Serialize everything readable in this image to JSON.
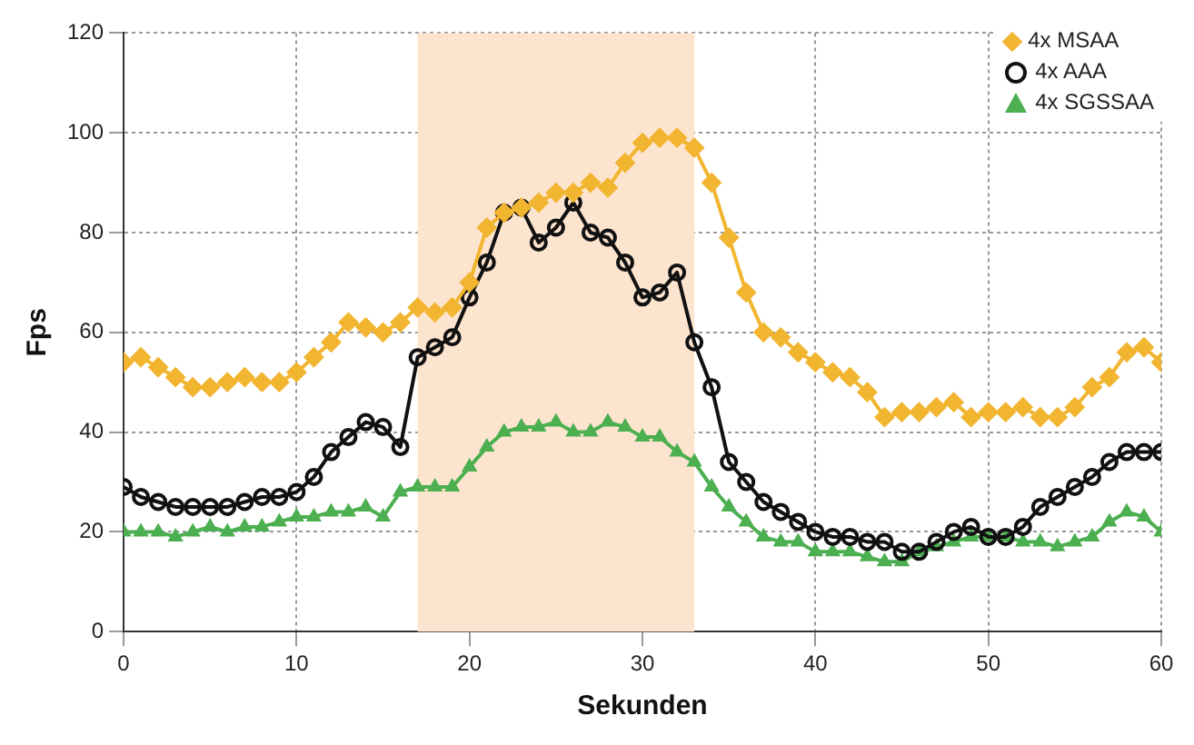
{
  "chart_data": {
    "type": "line",
    "xlabel": "Sekunden",
    "ylabel": "Fps",
    "x": [
      0,
      1,
      2,
      3,
      4,
      5,
      6,
      7,
      8,
      9,
      10,
      11,
      12,
      13,
      14,
      15,
      16,
      17,
      18,
      19,
      20,
      21,
      22,
      23,
      24,
      25,
      26,
      27,
      28,
      29,
      30,
      31,
      32,
      33,
      34,
      35,
      36,
      37,
      38,
      39,
      40,
      41,
      42,
      43,
      44,
      45,
      46,
      47,
      48,
      49,
      50,
      51,
      52,
      53,
      54,
      55,
      56,
      57,
      58,
      59,
      60
    ],
    "series": [
      {
        "name": "4x MSAA",
        "color": "#f2b530",
        "marker": "diamond",
        "values": [
          54,
          55,
          53,
          51,
          49,
          49,
          50,
          51,
          50,
          50,
          52,
          55,
          58,
          62,
          61,
          60,
          62,
          65,
          64,
          65,
          70,
          81,
          84,
          85,
          86,
          88,
          88,
          90,
          89,
          94,
          98,
          99,
          99,
          97,
          90,
          79,
          68,
          60,
          59,
          56,
          54,
          52,
          51,
          48,
          43,
          44,
          44,
          45,
          46,
          43,
          44,
          44,
          45,
          43,
          43,
          45,
          49,
          51,
          56,
          57,
          54
        ]
      },
      {
        "name": "4x AAA",
        "color": "#111111",
        "marker": "circle",
        "values": [
          29,
          27,
          26,
          25,
          25,
          25,
          25,
          26,
          27,
          27,
          28,
          31,
          36,
          39,
          42,
          41,
          37,
          55,
          57,
          59,
          67,
          74,
          84,
          85,
          78,
          81,
          86,
          80,
          79,
          74,
          67,
          68,
          72,
          58,
          49,
          34,
          30,
          26,
          24,
          22,
          20,
          19,
          19,
          18,
          18,
          16,
          16,
          18,
          20,
          21,
          19,
          19,
          21,
          25,
          27,
          29,
          31,
          34,
          36,
          36,
          36
        ]
      },
      {
        "name": "4x SGSSAA",
        "color": "#4caf50",
        "marker": "triangle",
        "values": [
          20,
          20,
          20,
          19,
          20,
          21,
          20,
          21,
          21,
          22,
          23,
          23,
          24,
          24,
          25,
          23,
          28,
          29,
          29,
          29,
          33,
          37,
          40,
          41,
          41,
          42,
          40,
          40,
          42,
          41,
          39,
          39,
          36,
          34,
          29,
          25,
          22,
          19,
          18,
          18,
          16,
          16,
          16,
          15,
          14,
          14,
          16,
          17,
          18,
          19,
          19,
          19,
          18,
          18,
          17,
          18,
          19,
          22,
          24,
          23,
          20
        ]
      }
    ],
    "xlim": [
      0,
      60
    ],
    "xticks": [
      0,
      10,
      20,
      30,
      40,
      50,
      60
    ],
    "ylim": [
      0,
      120
    ],
    "yticks": [
      0,
      20,
      40,
      60,
      80,
      100,
      120
    ],
    "bands": [
      {
        "axis": "x",
        "from": 17,
        "to": 33,
        "color": "#fde4cf"
      }
    ],
    "grid": true,
    "legend": "top right",
    "line_style": "solid"
  }
}
